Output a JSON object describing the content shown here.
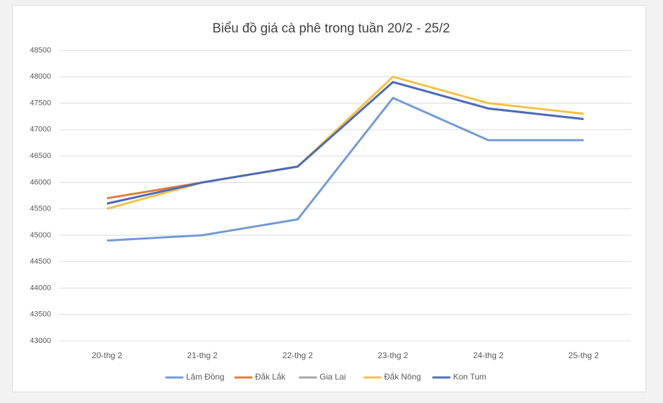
{
  "chart_data": {
    "type": "line",
    "title": "Biểu đồ giá cà phê trong tuần 20/2 - 25/2",
    "categories": [
      "20-thg 2",
      "21-thg 2",
      "22-thg 2",
      "23-thg 2",
      "24-thg 2",
      "25-thg 2"
    ],
    "series": [
      {
        "name": "Lâm Đồng",
        "color": "#6f9ad7",
        "values": [
          44900,
          45000,
          45300,
          47600,
          46800,
          46800
        ]
      },
      {
        "name": "Đắk Lắk",
        "color": "#e27a36",
        "values": [
          45700,
          46000,
          46300,
          47900,
          47400,
          47200
        ]
      },
      {
        "name": "Gia Lai",
        "color": "#a5a5a5",
        "values": [
          45600,
          46000,
          46300,
          47900,
          47400,
          47200
        ]
      },
      {
        "name": "Đắk Nông",
        "color": "#f4c143",
        "values": [
          45500,
          46000,
          46300,
          48000,
          47500,
          47300
        ]
      },
      {
        "name": "Kon Tum",
        "color": "#4a6bbf",
        "values": [
          45600,
          46000,
          46300,
          47900,
          47400,
          47200
        ]
      }
    ],
    "ylim": [
      43000,
      48500
    ],
    "yticks": [
      43000,
      43500,
      44000,
      44500,
      45000,
      45500,
      46000,
      46500,
      47000,
      47500,
      48000,
      48500
    ],
    "grid": true,
    "legend": "bottom"
  }
}
